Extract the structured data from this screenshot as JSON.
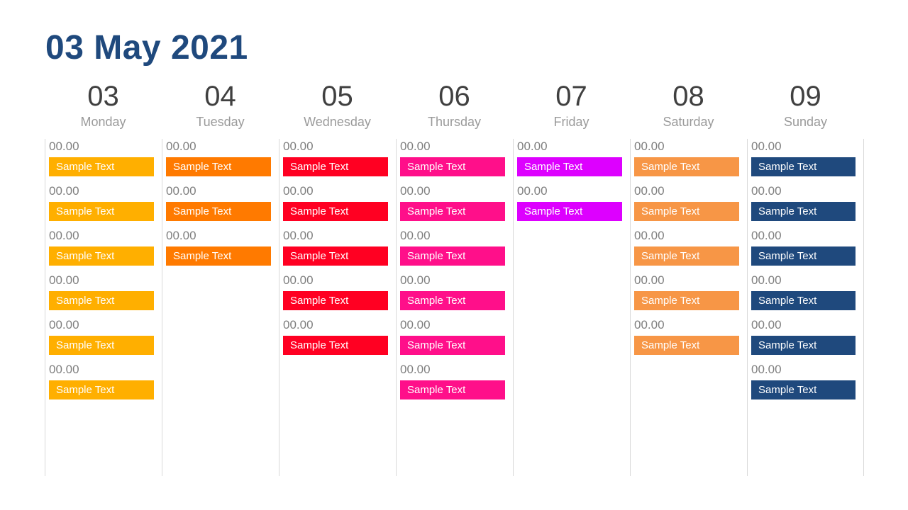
{
  "title": "03 May 2021",
  "days": [
    {
      "number": "03",
      "name": "Monday",
      "color": "#FFAF00",
      "slots": [
        {
          "time": "00.00",
          "text": "Sample Text"
        },
        {
          "time": "00.00",
          "text": "Sample Text"
        },
        {
          "time": "00.00",
          "text": "Sample Text"
        },
        {
          "time": "00.00",
          "text": "Sample Text"
        },
        {
          "time": "00.00",
          "text": "Sample Text"
        },
        {
          "time": "00.00",
          "text": "Sample Text"
        }
      ]
    },
    {
      "number": "04",
      "name": "Tuesday",
      "color": "#FF7A00",
      "slots": [
        {
          "time": "00.00",
          "text": "Sample Text"
        },
        {
          "time": "00.00",
          "text": "Sample Text"
        },
        {
          "time": "00.00",
          "text": "Sample Text"
        }
      ]
    },
    {
      "number": "05",
      "name": "Wednesday",
      "color": "#FF0022",
      "slots": [
        {
          "time": "00.00",
          "text": "Sample Text"
        },
        {
          "time": "00.00",
          "text": "Sample Text"
        },
        {
          "time": "00.00",
          "text": "Sample Text"
        },
        {
          "time": "00.00",
          "text": "Sample Text"
        },
        {
          "time": "00.00",
          "text": "Sample Text"
        }
      ]
    },
    {
      "number": "06",
      "name": "Thursday",
      "color": "#FF0F8A",
      "slots": [
        {
          "time": "00.00",
          "text": "Sample Text"
        },
        {
          "time": "00.00",
          "text": "Sample Text"
        },
        {
          "time": "00.00",
          "text": "Sample Text"
        },
        {
          "time": "00.00",
          "text": "Sample Text"
        },
        {
          "time": "00.00",
          "text": "Sample Text"
        },
        {
          "time": "00.00",
          "text": "Sample Text"
        }
      ]
    },
    {
      "number": "07",
      "name": "Friday",
      "color": "#DD00FF",
      "slots": [
        {
          "time": "00.00",
          "text": "Sample Text"
        },
        {
          "time": "00.00",
          "text": "Sample Text"
        }
      ]
    },
    {
      "number": "08",
      "name": "Saturday",
      "color": "#F79646",
      "slots": [
        {
          "time": "00.00",
          "text": "Sample Text"
        },
        {
          "time": "00.00",
          "text": "Sample Text"
        },
        {
          "time": "00.00",
          "text": "Sample Text"
        },
        {
          "time": "00.00",
          "text": "Sample Text"
        },
        {
          "time": "00.00",
          "text": "Sample Text"
        }
      ]
    },
    {
      "number": "09",
      "name": "Sunday",
      "color": "#1F497D",
      "slots": [
        {
          "time": "00.00",
          "text": "Sample Text"
        },
        {
          "time": "00.00",
          "text": "Sample Text"
        },
        {
          "time": "00.00",
          "text": "Sample Text"
        },
        {
          "time": "00.00",
          "text": "Sample Text"
        },
        {
          "time": "00.00",
          "text": "Sample Text"
        },
        {
          "time": "00.00",
          "text": "Sample Text"
        }
      ]
    }
  ]
}
